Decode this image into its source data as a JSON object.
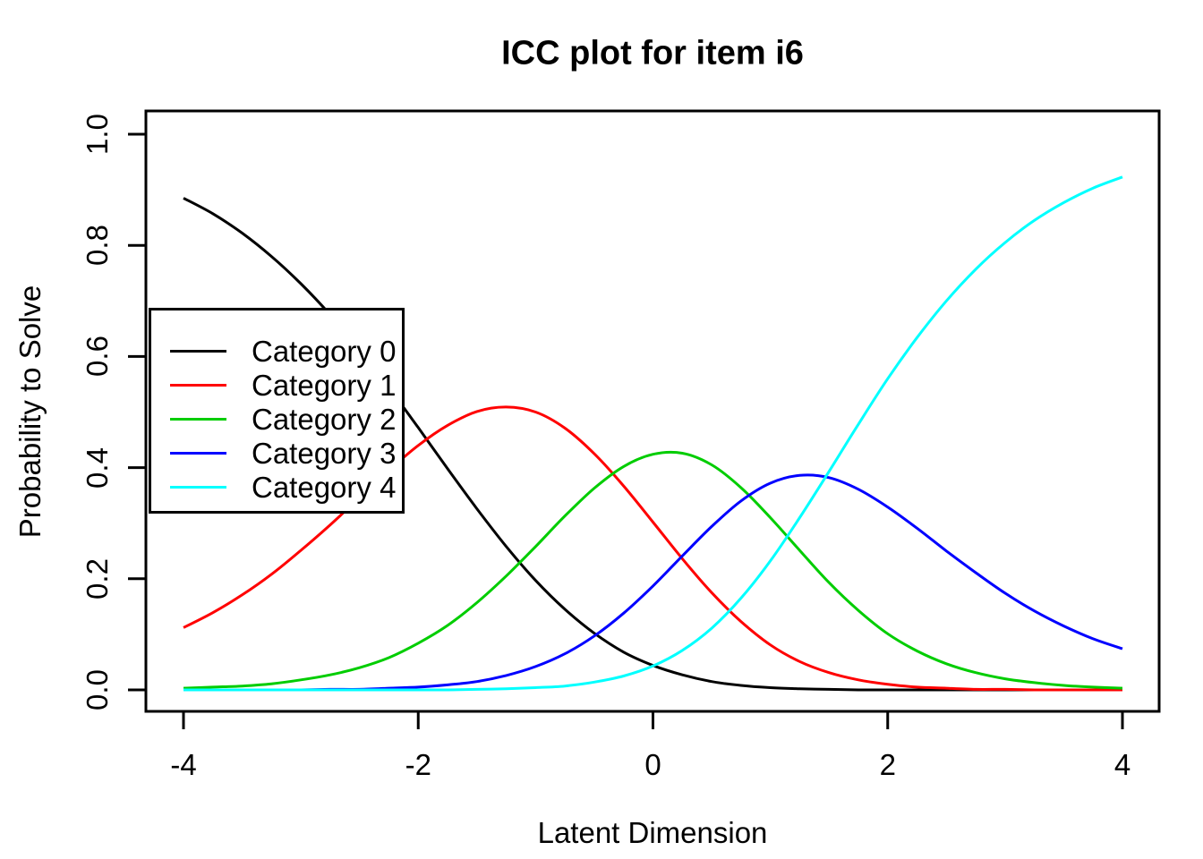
{
  "title": "ICC plot for item i6",
  "x_axis": {
    "label": "Latent Dimension",
    "ticks": [
      -4,
      -2,
      0,
      2,
      4
    ],
    "tick_labels": [
      "-4",
      "-2",
      "0",
      "2",
      "4"
    ]
  },
  "y_axis": {
    "label": "Probability to Solve",
    "ticks": [
      0.0,
      0.2,
      0.4,
      0.6,
      0.8,
      1.0
    ],
    "tick_labels": [
      "0.0",
      "0.2",
      "0.4",
      "0.6",
      "0.8",
      "1.0"
    ]
  },
  "legend": {
    "items": [
      {
        "label": "Category 0",
        "color": "#000000"
      },
      {
        "label": "Category 1",
        "color": "#FF0000"
      },
      {
        "label": "Category 2",
        "color": "#00CD00"
      },
      {
        "label": "Category 3",
        "color": "#0000FF"
      },
      {
        "label": "Category 4",
        "color": "#00FFFF"
      }
    ]
  },
  "colors": {
    "background": "#FFFFFF",
    "axis": "#000000"
  },
  "chart_data": {
    "type": "line",
    "title": "ICC plot for item i6",
    "xlabel": "Latent Dimension",
    "ylabel": "Probability to Solve",
    "xlim": [
      -4,
      4
    ],
    "ylim": [
      0,
      1
    ],
    "x_ticks": [
      -4,
      -2,
      0,
      2,
      4
    ],
    "y_ticks": [
      0.0,
      0.2,
      0.4,
      0.6,
      0.8,
      1.0
    ],
    "grid": false,
    "legend_position": "upper-left-inside",
    "x": [
      -4,
      -3.75,
      -3.5,
      -3.25,
      -3,
      -2.75,
      -2.5,
      -2.25,
      -2,
      -1.75,
      -1.5,
      -1.25,
      -1,
      -0.75,
      -0.5,
      -0.25,
      0,
      0.25,
      0.5,
      0.75,
      1,
      1.25,
      1.5,
      1.75,
      2,
      2.25,
      2.5,
      2.75,
      3,
      3.25,
      3.5,
      3.75,
      4
    ],
    "series": [
      {
        "name": "Category 0",
        "color": "#000000",
        "values": [
          0.885,
          0.857,
          0.822,
          0.78,
          0.731,
          0.675,
          0.612,
          0.544,
          0.472,
          0.398,
          0.326,
          0.258,
          0.197,
          0.145,
          0.102,
          0.068,
          0.044,
          0.027,
          0.015,
          0.008,
          0.004,
          0.002,
          0.001,
          0.0,
          0.0,
          0.0,
          0.0,
          0.0,
          0.0,
          0.0,
          0.0,
          0.0,
          0.0
        ]
      },
      {
        "name": "Category 1",
        "color": "#FF0000",
        "values": [
          0.112,
          0.139,
          0.171,
          0.208,
          0.251,
          0.297,
          0.346,
          0.395,
          0.44,
          0.476,
          0.501,
          0.509,
          0.5,
          0.471,
          0.425,
          0.367,
          0.302,
          0.236,
          0.175,
          0.123,
          0.081,
          0.051,
          0.031,
          0.018,
          0.01,
          0.005,
          0.003,
          0.001,
          0.001,
          0.0,
          0.0,
          0.0,
          0.0
        ]
      },
      {
        "name": "Category 2",
        "color": "#00CD00",
        "values": [
          0.003,
          0.005,
          0.007,
          0.011,
          0.018,
          0.027,
          0.04,
          0.058,
          0.084,
          0.116,
          0.157,
          0.205,
          0.258,
          0.313,
          0.363,
          0.402,
          0.424,
          0.426,
          0.405,
          0.364,
          0.31,
          0.251,
          0.193,
          0.143,
          0.101,
          0.07,
          0.047,
          0.031,
          0.02,
          0.013,
          0.008,
          0.005,
          0.003
        ]
      },
      {
        "name": "Category 3",
        "color": "#0000FF",
        "values": [
          0.0,
          0.0,
          0.0,
          0.0,
          0.0,
          0.001,
          0.001,
          0.003,
          0.005,
          0.009,
          0.015,
          0.026,
          0.042,
          0.065,
          0.097,
          0.138,
          0.187,
          0.241,
          0.294,
          0.34,
          0.372,
          0.386,
          0.382,
          0.361,
          0.329,
          0.291,
          0.25,
          0.211,
          0.174,
          0.142,
          0.115,
          0.092,
          0.074
        ]
      },
      {
        "name": "Category 4",
        "color": "#00FFFF",
        "values": [
          0.0,
          0.0,
          0.0,
          0.0,
          0.0,
          0.0,
          0.0,
          0.0,
          0.0,
          0.0,
          0.001,
          0.002,
          0.004,
          0.007,
          0.014,
          0.025,
          0.043,
          0.071,
          0.111,
          0.165,
          0.232,
          0.31,
          0.393,
          0.478,
          0.56,
          0.634,
          0.7,
          0.757,
          0.805,
          0.845,
          0.877,
          0.903,
          0.923
        ]
      }
    ]
  }
}
